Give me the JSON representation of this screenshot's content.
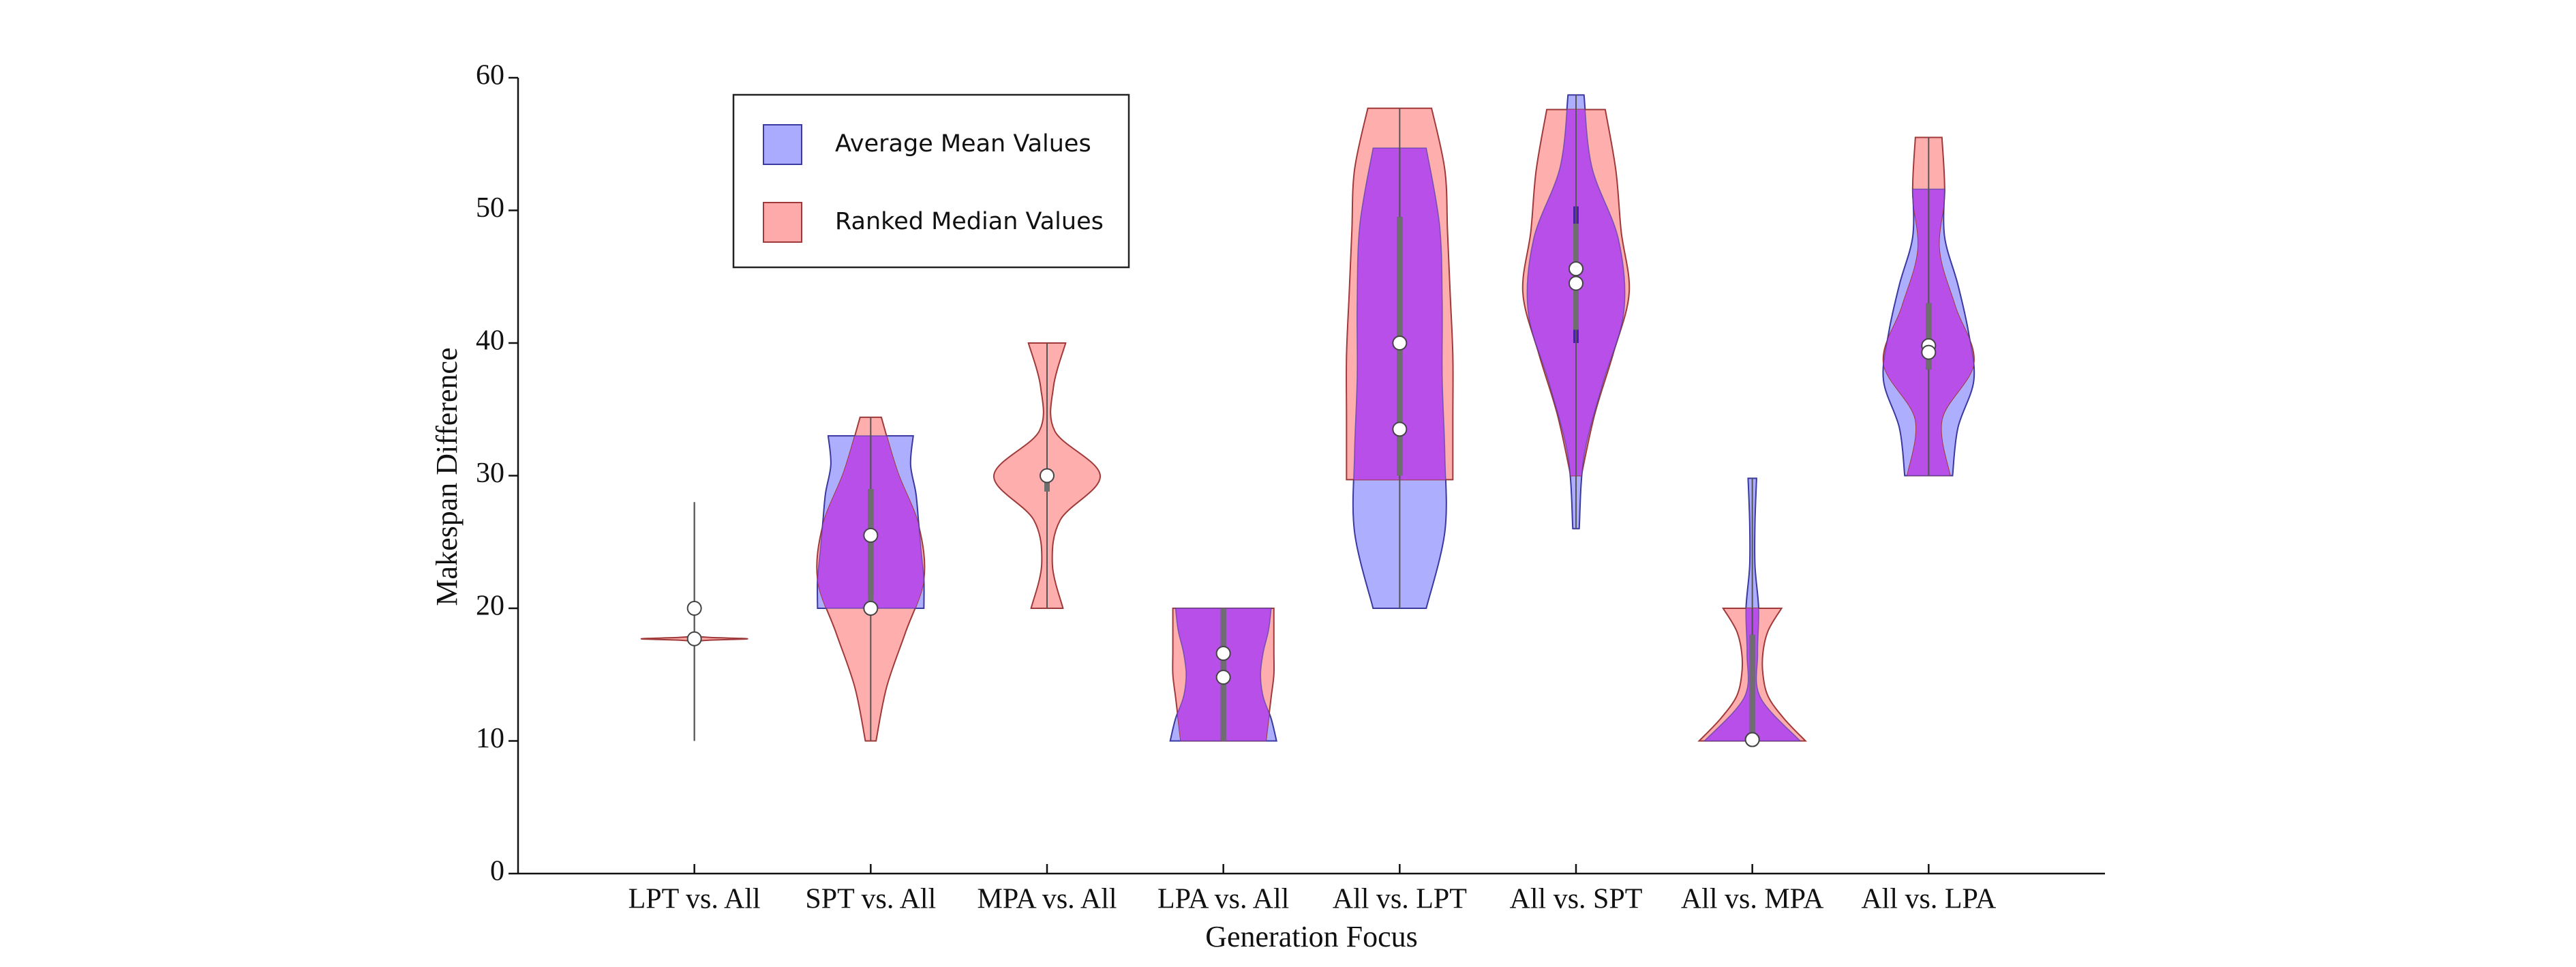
{
  "chart_data": {
    "type": "violin",
    "xlabel": "Generation Focus",
    "ylabel": "Makespan Difference",
    "categories": [
      "LPT vs. All",
      "SPT vs. All",
      "MPA vs. All",
      "LPA vs. All",
      "All vs. LPT",
      "All vs. SPT",
      "All vs. MPA",
      "All vs. LPA"
    ],
    "ylim": [
      0,
      60
    ],
    "yticks": [
      0,
      10,
      20,
      30,
      40,
      50,
      60
    ],
    "legend": "upper left",
    "overlap_color": "#b84fe8",
    "series": [
      {
        "name": "Average Mean Values",
        "color": "#aaaaff",
        "violins": [
          {
            "min": 10,
            "max": 28,
            "q1": 19.5,
            "q3": 20.5,
            "median": 20,
            "widths": [
              0,
              0,
              0
            ]
          },
          {
            "min": 20,
            "max": 33,
            "q1": 21,
            "q3": 29,
            "median": 25.5,
            "widths": [
              1.0,
              1.0,
              0.95,
              0.9,
              0.85,
              0.75,
              0.8
            ]
          },
          null,
          {
            "min": 10,
            "max": 20,
            "q1": 10,
            "q3": 20,
            "median": 14.8,
            "widths": [
              1.0,
              0.9,
              0.75,
              0.7,
              0.75,
              0.85,
              0.9
            ]
          },
          {
            "min": 20,
            "max": 54.7,
            "q1": 30,
            "q3": 49.5,
            "median": 40,
            "widths": [
              0.5,
              0.85,
              0.85,
              0.8,
              0.8,
              0.75,
              0.5
            ]
          },
          {
            "min": 26,
            "max": 58.7,
            "q1": 40,
            "q3": 50.3,
            "median": 45.6,
            "widths": [
              0.06,
              0.15,
              0.5,
              0.9,
              0.8,
              0.3,
              0.15
            ]
          },
          {
            "min": 10,
            "max": 29.8,
            "q1": 10,
            "q3": 18,
            "median": 10.1,
            "widths": [
              0.9,
              0.15,
              0.1,
              0.12,
              0.05,
              0.05,
              0.08
            ]
          },
          {
            "min": 30,
            "max": 51.6,
            "q1": 38,
            "q3": 43,
            "median": 39.8,
            "widths": [
              0.45,
              0.55,
              0.85,
              0.75,
              0.55,
              0.3,
              0.3
            ]
          }
        ]
      },
      {
        "name": "Ranked Median Values",
        "color": "#ffaaaa",
        "violins": [
          {
            "min": 17.5,
            "max": 17.9,
            "q1": 17.6,
            "q3": 17.8,
            "median": 17.7,
            "widths": [
              0,
              0.3,
              1.0,
              0.3,
              0
            ]
          },
          {
            "min": 10,
            "max": 34.4,
            "q1": 20,
            "q3": 29,
            "median": 20,
            "widths": [
              0.1,
              0.3,
              0.65,
              1.0,
              0.9,
              0.5,
              0.2
            ]
          },
          {
            "min": 20,
            "max": 40,
            "q1": 28.8,
            "q3": 30,
            "median": 30,
            "widths": [
              0.3,
              0.1,
              0.25,
              1.0,
              0.15,
              0.12,
              0.35
            ]
          },
          {
            "min": 10,
            "max": 20,
            "q1": 10,
            "q3": 20,
            "median": 16.6,
            "widths": [
              0.8,
              0.85,
              0.9,
              0.95,
              0.95,
              0.95,
              0.95
            ]
          },
          {
            "min": 29.7,
            "max": 57.7,
            "q1": 30,
            "q3": 49.5,
            "median": 33.5,
            "widths": [
              1.0,
              1.0,
              1.0,
              0.95,
              0.9,
              0.85,
              0.6
            ]
          },
          {
            "min": 30,
            "max": 57.6,
            "q1": 41,
            "q3": 49,
            "median": 44.5,
            "widths": [
              0.1,
              0.35,
              0.7,
              1.0,
              0.85,
              0.75,
              0.55
            ]
          },
          {
            "min": 10,
            "max": 20,
            "q1": 10,
            "q3": 18,
            "median": 10.1,
            "widths": [
              1.0,
              0.6,
              0.3,
              0.2,
              0.2,
              0.3,
              0.55
            ]
          },
          {
            "min": 30,
            "max": 55.5,
            "q1": 38,
            "q3": 43,
            "median": 39.3,
            "widths": [
              0.4,
              0.25,
              0.85,
              0.5,
              0.2,
              0.3,
              0.25
            ]
          }
        ]
      }
    ]
  }
}
